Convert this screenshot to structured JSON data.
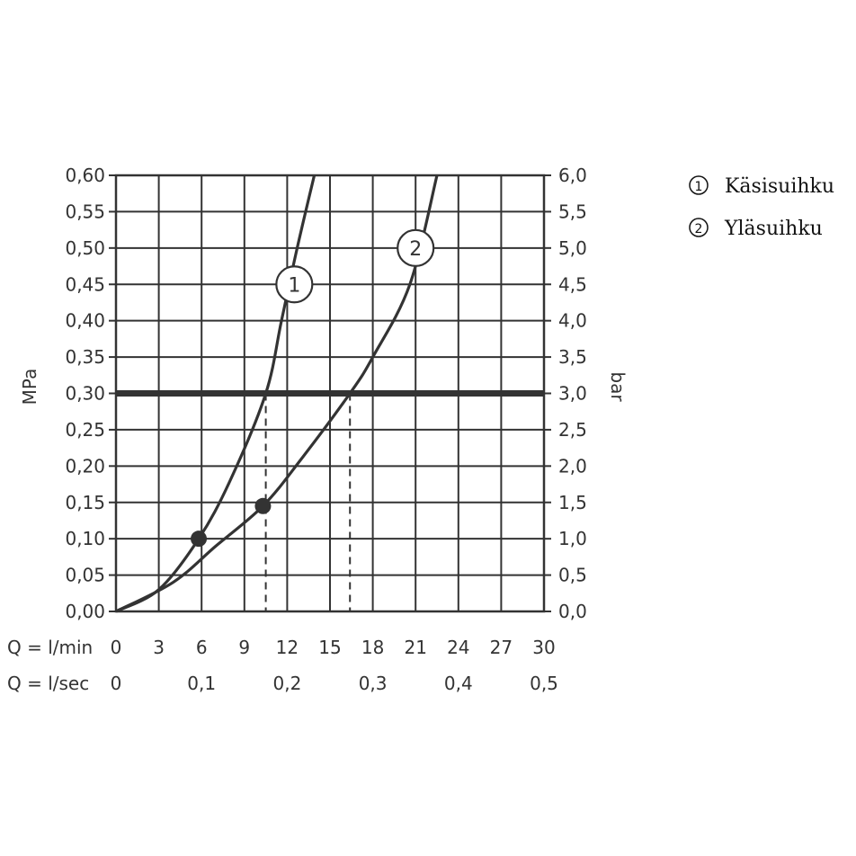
{
  "chart_data": {
    "type": "line",
    "ylabel_left": "MPa",
    "ylabel_right": "bar",
    "x_row_label_lmin": "Q = l/min",
    "x_row_label_lsec": "Q = l/sec",
    "xlim": [
      0,
      30
    ],
    "ylim": [
      0,
      0.6
    ],
    "x_ticks_lmin": [
      "0",
      "3",
      "6",
      "9",
      "12",
      "15",
      "18",
      "21",
      "24",
      "27",
      "30"
    ],
    "x_ticks_lsec": [
      {
        "at": 0,
        "label": "0"
      },
      {
        "at": 6,
        "label": "0,1"
      },
      {
        "at": 12,
        "label": "0,2"
      },
      {
        "at": 18,
        "label": "0,3"
      },
      {
        "at": 24,
        "label": "0,4"
      },
      {
        "at": 30,
        "label": "0,5"
      }
    ],
    "y_ticks_left": [
      "0,00",
      "0,05",
      "0,10",
      "0,15",
      "0,20",
      "0,25",
      "0,30",
      "0,35",
      "0,40",
      "0,45",
      "0,50",
      "0,55",
      "0,60"
    ],
    "y_ticks_right": [
      "0,0",
      "0,5",
      "1,0",
      "1,5",
      "2,0",
      "2,5",
      "3,0",
      "3,5",
      "4,0",
      "4,5",
      "5,0",
      "5,5",
      "6,0"
    ],
    "grid": true,
    "reference_line": {
      "y": 0.3
    },
    "series": [
      {
        "name": "Käsisuihku",
        "marker": "1",
        "points": [
          [
            0,
            0
          ],
          [
            3,
            0.03
          ],
          [
            5.8,
            0.1
          ],
          [
            8,
            0.18
          ],
          [
            10.5,
            0.3
          ],
          [
            11.6,
            0.4
          ],
          [
            12.7,
            0.5
          ],
          [
            13.9,
            0.6
          ]
        ],
        "label_at": [
          12.5,
          0.45
        ],
        "flow_at_reference": 10.5,
        "marked_point": [
          5.8,
          0.1
        ]
      },
      {
        "name": "Yläsuihku",
        "marker": "2",
        "points": [
          [
            0,
            0
          ],
          [
            4,
            0.04
          ],
          [
            7,
            0.09
          ],
          [
            10.3,
            0.145
          ],
          [
            13,
            0.21
          ],
          [
            16.4,
            0.3
          ],
          [
            18,
            0.35
          ],
          [
            20.6,
            0.45
          ],
          [
            22.5,
            0.6
          ]
        ],
        "label_at": [
          21,
          0.5
        ],
        "flow_at_reference": 16.4,
        "marked_point": [
          10.3,
          0.145
        ]
      }
    ],
    "legend": {
      "placement": "top-right",
      "items": [
        {
          "marker": "1",
          "label": "Käsisuihku"
        },
        {
          "marker": "2",
          "label": "Yläsuihku"
        }
      ]
    }
  }
}
